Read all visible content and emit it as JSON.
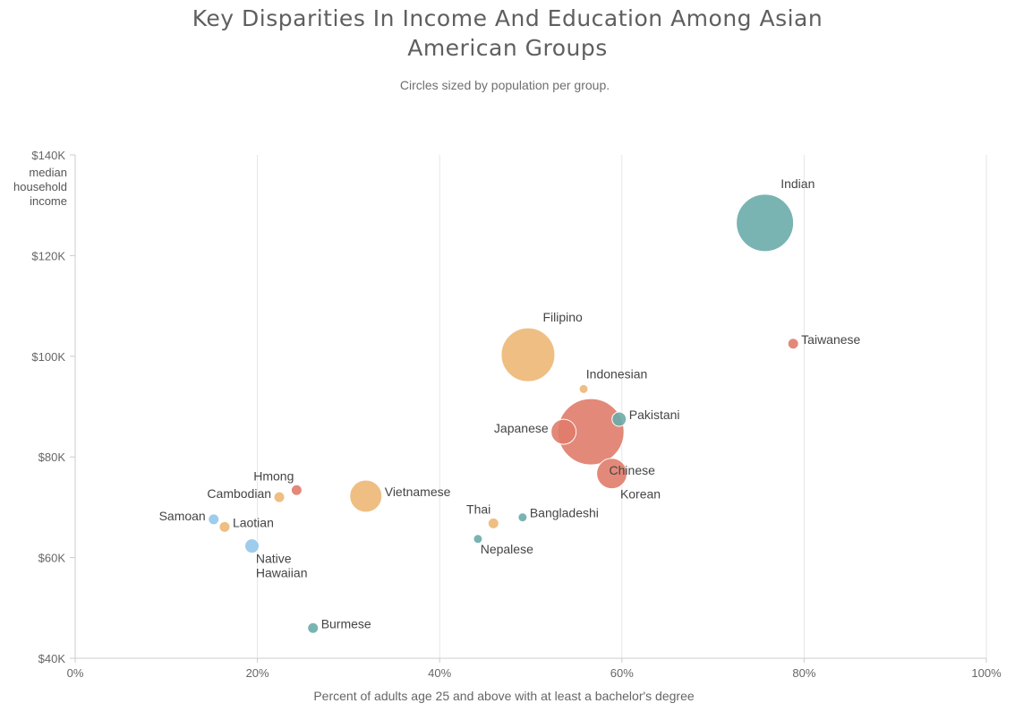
{
  "chart_data": {
    "type": "scatter",
    "title_lines": [
      "Key Disparities In Income And Education Among Asian",
      "American Groups"
    ],
    "subtitle": "Circles sized by population per group.",
    "xlabel": "Percent of adults age 25 and above with at least a bachelor's degree",
    "ylabel_lines": [
      "median",
      "household",
      "income"
    ],
    "xlim": [
      0,
      100
    ],
    "ylim": [
      40000,
      140000
    ],
    "x_ticks": [
      0,
      20,
      40,
      60,
      80,
      100
    ],
    "x_tick_labels": [
      "0%",
      "20%",
      "40%",
      "60%",
      "80%",
      "100%"
    ],
    "y_ticks": [
      40000,
      60000,
      80000,
      100000,
      120000,
      140000
    ],
    "y_tick_labels": [
      "$40K",
      "$60K",
      "$80K",
      "$100K",
      "$120K",
      "$140K"
    ],
    "grid": "vertical",
    "colors": {
      "teal": "#6aacaa",
      "orange": "#edb774",
      "salmon": "#e07c6a",
      "blue": "#93c7ea"
    },
    "points": [
      {
        "label": "Indian",
        "x": 75.7,
        "y": 126500,
        "color": "teal",
        "size": 32,
        "label_pos": "above-right"
      },
      {
        "label": "Taiwanese",
        "x": 78.8,
        "y": 102500,
        "color": "salmon",
        "size": 6,
        "label_pos": "right"
      },
      {
        "label": "Filipino",
        "x": 49.7,
        "y": 100300,
        "color": "orange",
        "size": 30,
        "label_pos": "above-right"
      },
      {
        "label": "Indonesian",
        "x": 55.8,
        "y": 93500,
        "color": "orange",
        "size": 5,
        "label_pos": "above-right"
      },
      {
        "label": "Pakistani",
        "x": 59.7,
        "y": 87500,
        "color": "teal",
        "size": 8,
        "label_pos": "right"
      },
      {
        "label": "Chinese",
        "x": 56.6,
        "y": 85000,
        "color": "salmon",
        "size": 37,
        "label_pos": "below-right"
      },
      {
        "label": "Japanese",
        "x": 53.6,
        "y": 85000,
        "color": "salmon",
        "size": 14,
        "label_pos": "left"
      },
      {
        "label": "Korean",
        "x": 58.9,
        "y": 76700,
        "color": "salmon",
        "size": 17,
        "label_pos": "below-right"
      },
      {
        "label": "Hmong",
        "x": 24.3,
        "y": 73400,
        "color": "salmon",
        "size": 6,
        "label_pos": "above-left"
      },
      {
        "label": "Cambodian",
        "x": 22.4,
        "y": 72000,
        "color": "orange",
        "size": 6,
        "label_pos": "left"
      },
      {
        "label": "Vietnamese",
        "x": 31.9,
        "y": 72200,
        "color": "orange",
        "size": 18,
        "label_pos": "right"
      },
      {
        "label": "Samoan",
        "x": 15.2,
        "y": 67600,
        "color": "blue",
        "size": 6,
        "label_pos": "left"
      },
      {
        "label": "Laotian",
        "x": 16.4,
        "y": 66100,
        "color": "orange",
        "size": 6,
        "label_pos": "right"
      },
      {
        "label": "Thai",
        "x": 45.9,
        "y": 66800,
        "color": "orange",
        "size": 6,
        "label_pos": "above-left"
      },
      {
        "label": "Bangladeshi",
        "x": 49.1,
        "y": 68000,
        "color": "teal",
        "size": 5,
        "label_pos": "right"
      },
      {
        "label": "Native Hawaiian",
        "label_lines": [
          "Native",
          "Hawaiian"
        ],
        "x": 19.4,
        "y": 62300,
        "color": "blue",
        "size": 8,
        "label_pos": "below-right"
      },
      {
        "label": "Nepalese",
        "x": 44.2,
        "y": 63700,
        "color": "teal",
        "size": 5,
        "label_pos": "below-right"
      },
      {
        "label": "Burmese",
        "x": 26.1,
        "y": 46000,
        "color": "teal",
        "size": 6,
        "label_pos": "right"
      }
    ]
  }
}
